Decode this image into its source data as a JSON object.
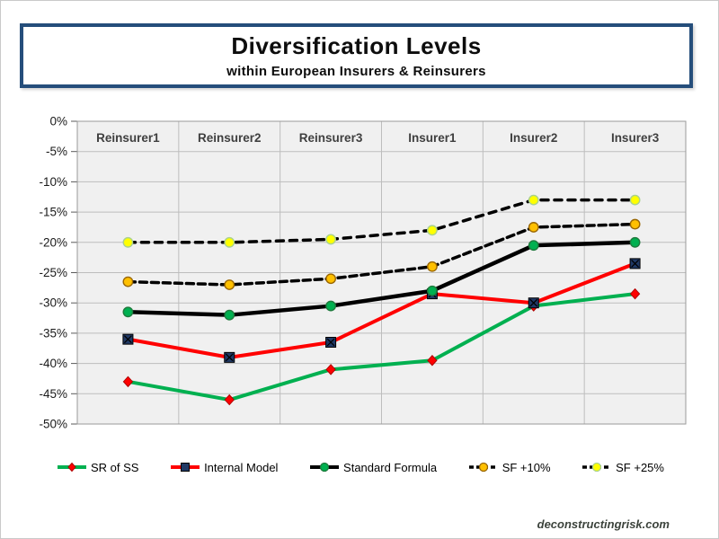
{
  "page": {
    "title": "Diversification Levels",
    "subtitle": "within European Insurers &  Reinsurers",
    "watermark": "deconstructingrisk.com"
  },
  "colors": {
    "title_box_border": "#254e7b",
    "plot_bg": "#f0f0f0",
    "grid": "#bdbdbd",
    "plot_frame": "#9a9a9a",
    "tick": "#595959",
    "axis_label": "#1a1a1a",
    "category_label": "#3f3f3f"
  },
  "chart_data": {
    "type": "line",
    "title": "Diversification Levels",
    "subtitle": "within European Insurers & Reinsurers",
    "xlabel": "",
    "ylabel": "",
    "ylim": [
      -50,
      0
    ],
    "grid": true,
    "legend_position": "bottom",
    "y_ticks": [
      "0%",
      "-5%",
      "-10%",
      "-15%",
      "-20%",
      "-25%",
      "-30%",
      "-35%",
      "-40%",
      "-45%",
      "-50%"
    ],
    "categories": [
      "Reinsurer1",
      "Reinsurer2",
      "Reinsurer3",
      "Insurer1",
      "Insurer2",
      "Insurer3"
    ],
    "series": [
      {
        "name": "SR of SS",
        "values": [
          -43,
          -46,
          -41,
          -39.5,
          -30.5,
          -28.5
        ],
        "line_color": "#00b050",
        "line_style": "solid",
        "line_width": 4,
        "dash": "",
        "marker": "diamond",
        "marker_color": "#ff0000",
        "marker_edge": "#b00000"
      },
      {
        "name": "Internal Model",
        "values": [
          -36,
          -39,
          -36.5,
          -28.5,
          -30,
          -23.5
        ],
        "line_color": "#ff0000",
        "line_style": "solid",
        "line_width": 4,
        "dash": "",
        "marker": "square-x",
        "marker_color": "#1f3864",
        "marker_edge": "#000000"
      },
      {
        "name": "Standard Formula",
        "values": [
          -31.5,
          -32,
          -30.5,
          -28,
          -20.5,
          -20
        ],
        "line_color": "#000000",
        "line_style": "solid",
        "line_width": 4.5,
        "dash": "",
        "marker": "circle",
        "marker_color": "#00b050",
        "marker_edge": "#1e7a3c"
      },
      {
        "name": "SF +10%",
        "values": [
          -26.5,
          -27,
          -26,
          -24,
          -17.5,
          -17
        ],
        "line_color": "#000000",
        "line_style": "dashed",
        "line_width": 3.5,
        "dash": "8 5",
        "marker": "circle",
        "marker_color": "#ffc000",
        "marker_edge": "#996600"
      },
      {
        "name": "SF +25%",
        "values": [
          -20,
          -20,
          -19.5,
          -18,
          -13,
          -13
        ],
        "line_color": "#000000",
        "line_style": "dashed",
        "line_width": 3.5,
        "dash": "8 7",
        "marker": "circle",
        "marker_color": "#ffff00",
        "marker_edge": "#a9d18e"
      }
    ]
  }
}
